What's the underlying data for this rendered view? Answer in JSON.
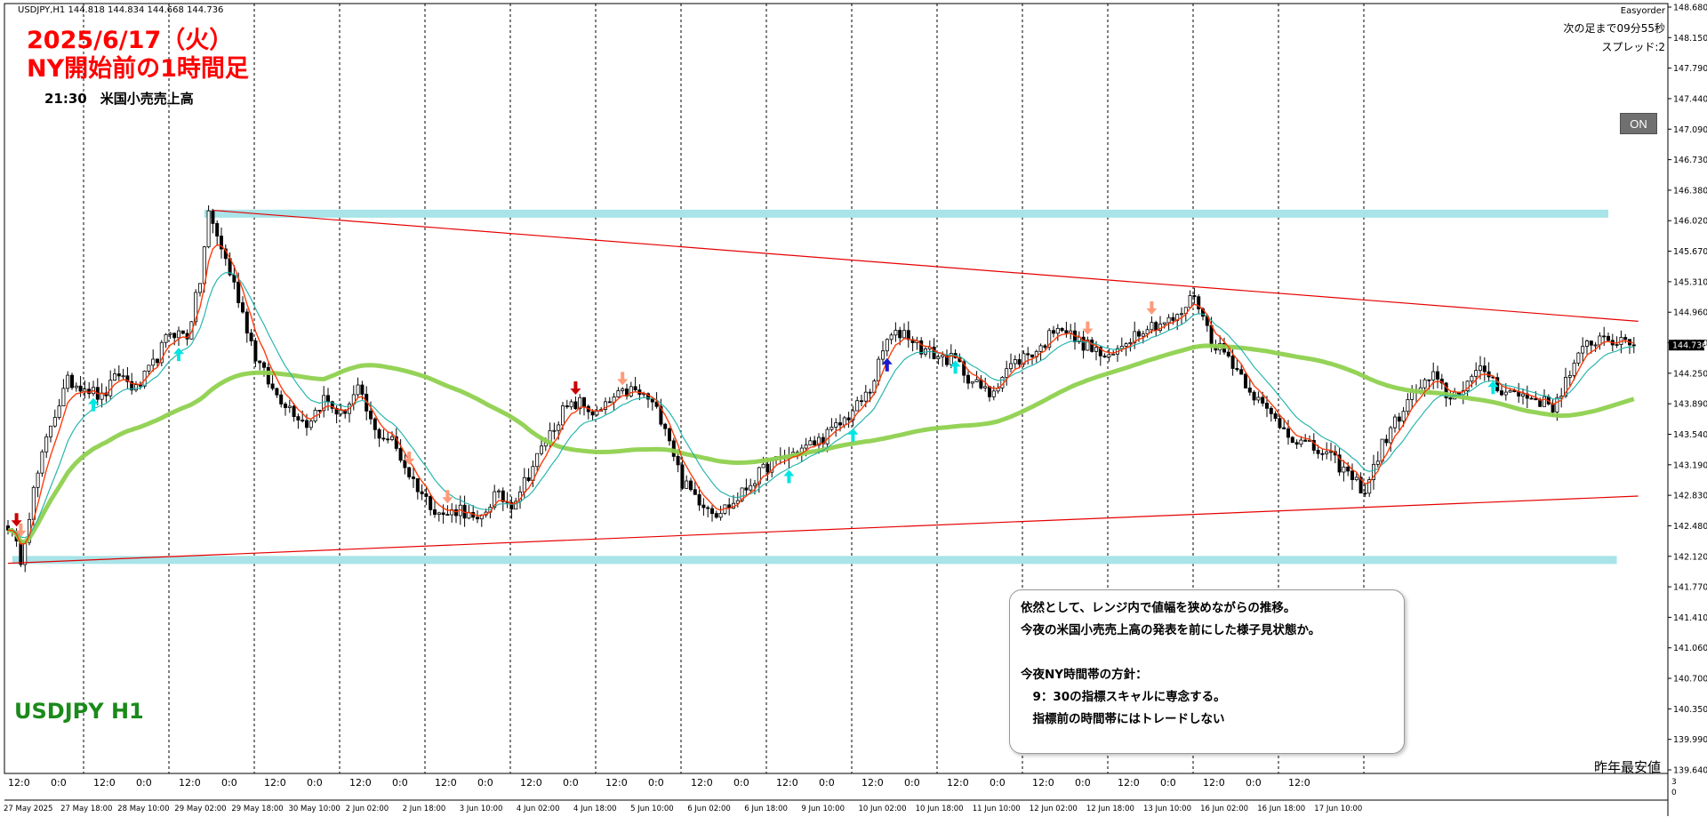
{
  "header": {
    "symbol_info": "USDJPY,H1  144.818 144.834 144.668 144.736",
    "easyorder": "Easyorder",
    "next_bar": "次の足まで09分55秒",
    "spread": "スプレッド:2"
  },
  "annotations": {
    "date_title": "2025/6/17（火）",
    "subtitle": "NY開始前の1時間足",
    "event": "21:30　米国小売売上高",
    "symbol_label": "USDJPY H1",
    "low_label": "昨年最安値",
    "on_button": "ON"
  },
  "note": {
    "lines": [
      "依然として、レンジ内で値幅を狭めながらの推移。",
      "今夜の米国小売売上高の発表を前にした様子見状態か。",
      "",
      "今夜NY時間帯の方針：",
      "　9：30の指標スキャルに専念する。",
      "　指標前の時間帯にはトレードしない"
    ]
  },
  "colors": {
    "bull": "#000000",
    "bear": "#000000",
    "fast_ma": "#ff3300",
    "mid_ma": "#20b2aa",
    "slow_ma": "#8fd14f",
    "trendline": "#e60000",
    "zone": "#a8e4e8",
    "grid": "#000000",
    "arrow_up": "#00e5e5",
    "arrow_down": "#ff9a7a",
    "arrow_up_strong": "#1a1acc",
    "arrow_down_strong": "#cc0000"
  },
  "chart_data": {
    "type": "candlestick",
    "symbol": "USDJPY",
    "timeframe": "H1",
    "ylim": [
      139.64,
      148.8
    ],
    "y_ticks": [
      "148.680",
      "148.150",
      "147.790",
      "147.440",
      "147.090",
      "146.730",
      "146.380",
      "146.020",
      "145.670",
      "145.310",
      "144.960",
      "144.600",
      "144.250",
      "143.890",
      "143.540",
      "143.190",
      "142.830",
      "142.480",
      "142.120",
      "141.770",
      "141.410",
      "141.060",
      "140.700",
      "140.350",
      "139.990",
      "139.640"
    ],
    "current_price": "144.736",
    "bottom_time_labels": [
      "12:0",
      "0:0",
      "12:0",
      "0:0",
      "12:0",
      "0:0",
      "12:0",
      "0:0",
      "12:0",
      "0:0",
      "12:0",
      "0:0",
      "12:0",
      "0:0",
      "12:0",
      "0:0",
      "12:0",
      "0:0",
      "12:0",
      "0:0",
      "12:0",
      "0:0",
      "12:0",
      "0:0",
      "12:0",
      "0:0",
      "12:0",
      "0:0",
      "12:0",
      "0:0",
      "12:0"
    ],
    "date_labels": [
      "27 May 2025",
      "27 May 18:00",
      "28 May 10:00",
      "29 May 02:00",
      "29 May 18:00",
      "30 May 10:00",
      "2 Jun 02:00",
      "2 Jun 18:00",
      "3 Jun 10:00",
      "4 Jun 02:00",
      "4 Jun 18:00",
      "5 Jun 10:00",
      "6 Jun 02:00",
      "6 Jun 18:00",
      "9 Jun 10:00",
      "10 Jun 02:00",
      "10 Jun 18:00",
      "11 Jun 10:00",
      "12 Jun 02:00",
      "12 Jun 18:00",
      "13 Jun 10:00",
      "16 Jun 02:00",
      "16 Jun 18:00",
      "17 Jun 10:00"
    ],
    "axis_right_small": [
      "3",
      "0"
    ],
    "path_anchors": [
      [
        0,
        142.6
      ],
      [
        3,
        142.2
      ],
      [
        6,
        143.0
      ],
      [
        10,
        143.8
      ],
      [
        14,
        144.3
      ],
      [
        18,
        144.25
      ],
      [
        22,
        144.1
      ],
      [
        26,
        144.4
      ],
      [
        30,
        144.2
      ],
      [
        34,
        144.5
      ],
      [
        38,
        144.9
      ],
      [
        42,
        144.85
      ],
      [
        45,
        145.5
      ],
      [
        47,
        146.3
      ],
      [
        50,
        145.9
      ],
      [
        54,
        145.3
      ],
      [
        58,
        144.6
      ],
      [
        62,
        144.2
      ],
      [
        66,
        144.0
      ],
      [
        70,
        143.8
      ],
      [
        74,
        144.1
      ],
      [
        78,
        143.9
      ],
      [
        82,
        144.2
      ],
      [
        86,
        143.7
      ],
      [
        90,
        143.6
      ],
      [
        94,
        143.2
      ],
      [
        98,
        142.9
      ],
      [
        102,
        142.7
      ],
      [
        106,
        142.8
      ],
      [
        110,
        142.6
      ],
      [
        114,
        142.95
      ],
      [
        118,
        142.85
      ],
      [
        122,
        143.2
      ],
      [
        126,
        143.6
      ],
      [
        130,
        143.95
      ],
      [
        134,
        144.05
      ],
      [
        138,
        143.9
      ],
      [
        142,
        144.1
      ],
      [
        146,
        144.2
      ],
      [
        150,
        144.1
      ],
      [
        154,
        143.8
      ],
      [
        158,
        143.1
      ],
      [
        162,
        142.9
      ],
      [
        166,
        142.75
      ],
      [
        170,
        142.85
      ],
      [
        174,
        143.1
      ],
      [
        178,
        143.3
      ],
      [
        182,
        143.4
      ],
      [
        186,
        143.5
      ],
      [
        190,
        143.6
      ],
      [
        194,
        143.75
      ],
      [
        198,
        143.95
      ],
      [
        202,
        144.2
      ],
      [
        206,
        144.8
      ],
      [
        210,
        144.9
      ],
      [
        214,
        144.7
      ],
      [
        218,
        144.6
      ],
      [
        222,
        144.55
      ],
      [
        226,
        144.3
      ],
      [
        230,
        144.15
      ],
      [
        234,
        144.45
      ],
      [
        238,
        144.6
      ],
      [
        242,
        144.7
      ],
      [
        246,
        145.0
      ],
      [
        250,
        144.8
      ],
      [
        254,
        144.7
      ],
      [
        258,
        144.55
      ],
      [
        262,
        144.8
      ],
      [
        266,
        144.95
      ],
      [
        270,
        145.0
      ],
      [
        274,
        145.05
      ],
      [
        278,
        145.35
      ],
      [
        282,
        144.8
      ],
      [
        286,
        144.6
      ],
      [
        290,
        144.3
      ],
      [
        294,
        144.0
      ],
      [
        298,
        143.8
      ],
      [
        302,
        143.6
      ],
      [
        306,
        143.5
      ],
      [
        310,
        143.4
      ],
      [
        314,
        143.2
      ],
      [
        318,
        143.0
      ],
      [
        322,
        143.55
      ],
      [
        326,
        143.9
      ],
      [
        330,
        144.2
      ],
      [
        334,
        144.35
      ],
      [
        338,
        144.1
      ],
      [
        342,
        144.3
      ],
      [
        346,
        144.45
      ],
      [
        350,
        144.2
      ],
      [
        354,
        144.15
      ],
      [
        358,
        144.1
      ],
      [
        362,
        144.0
      ],
      [
        366,
        144.4
      ],
      [
        370,
        144.75
      ],
      [
        374,
        144.85
      ],
      [
        378,
        144.75
      ],
      [
        381,
        144.74
      ]
    ],
    "series": [
      {
        "name": "",
        "kind": "ma",
        "period": 5
      },
      {
        "name": "",
        "kind": "ma",
        "period": 12
      },
      {
        "name": "",
        "kind": "ma",
        "period": 75
      }
    ],
    "trendlines": [
      {
        "from": [
          0,
          142.14
        ],
        "to": [
          382,
          142.94
        ]
      },
      {
        "from": [
          48,
          146.34
        ],
        "to": [
          382,
          145.02
        ]
      }
    ],
    "zones": [
      {
        "from": [
          46,
          146.3
        ],
        "to": [
          375,
          146.3
        ]
      },
      {
        "from": [
          1,
          142.18
        ],
        "to": [
          377,
          142.18
        ]
      }
    ],
    "signals": [
      {
        "i": 2,
        "dir": "down",
        "strong": true
      },
      {
        "i": 3,
        "dir": "down",
        "strong": false
      },
      {
        "i": 20,
        "dir": "up",
        "strong": false
      },
      {
        "i": 40,
        "dir": "up",
        "strong": false
      },
      {
        "i": 94,
        "dir": "down",
        "strong": false
      },
      {
        "i": 103,
        "dir": "down",
        "strong": false
      },
      {
        "i": 133,
        "dir": "down",
        "strong": true
      },
      {
        "i": 144,
        "dir": "down",
        "strong": false
      },
      {
        "i": 183,
        "dir": "up",
        "strong": false
      },
      {
        "i": 198,
        "dir": "up",
        "strong": false
      },
      {
        "i": 206,
        "dir": "up",
        "strong": true
      },
      {
        "i": 222,
        "dir": "up",
        "strong": false
      },
      {
        "i": 253,
        "dir": "down",
        "strong": false
      },
      {
        "i": 268,
        "dir": "down",
        "strong": false
      },
      {
        "i": 348,
        "dir": "up",
        "strong": false
      }
    ]
  }
}
